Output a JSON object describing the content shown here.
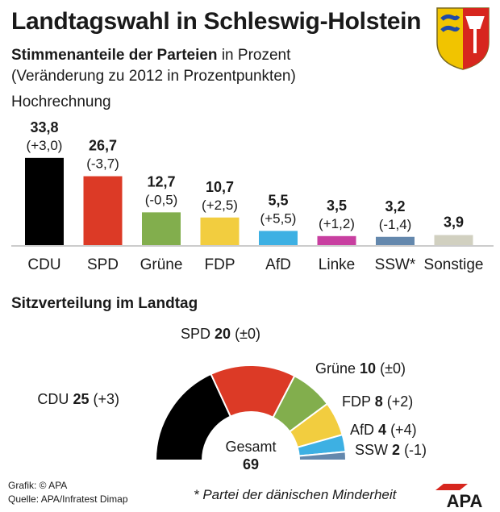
{
  "header": {
    "title": "Landtagswahl in Schleswig-Holstein",
    "subtitle_bold": "Stimmenanteile der Parteien",
    "subtitle_rest": " in Prozent",
    "subtitle2": "(Veränderung zu 2012 in Prozentpunkten)",
    "projection_label": "Hochrechnung"
  },
  "chart_data": [
    {
      "type": "bar",
      "categories": [
        "CDU",
        "SPD",
        "Grüne",
        "FDP",
        "AfD",
        "Linke",
        "SSW*",
        "Sonstige"
      ],
      "values": [
        33.8,
        26.7,
        12.7,
        10.7,
        5.5,
        3.5,
        3.2,
        3.9
      ],
      "value_labels": [
        "33,8",
        "26,7",
        "12,7",
        "10,7",
        "5,5",
        "3,5",
        "3,2",
        "3,9"
      ],
      "change_labels": [
        "(+3,0)",
        "(-3,7)",
        "(-0,5)",
        "(+2,5)",
        "(+5,5)",
        "(+1,2)",
        "(-1,4)",
        ""
      ],
      "colors": [
        "#000000",
        "#dc3a26",
        "#82ae4d",
        "#f2cd3f",
        "#3db0e3",
        "#c83fa0",
        "#6488ad",
        "#d1d0c0"
      ]
    },
    {
      "type": "pie",
      "title": "Sitzverteilung im Landtag",
      "categories": [
        "CDU",
        "SPD",
        "Grüne",
        "FDP",
        "AfD",
        "SSW"
      ],
      "values": [
        25,
        20,
        10,
        8,
        4,
        2
      ],
      "change_labels": [
        "(+3)",
        "(±0)",
        "(±0)",
        "(+2)",
        "(+4)",
        "(-1)"
      ],
      "colors": [
        "#000000",
        "#dc3a26",
        "#82ae4d",
        "#f2cd3f",
        "#3db0e3",
        "#6488ad"
      ],
      "total_label": "Gesamt",
      "total": "69"
    }
  ],
  "footer": {
    "source_graphic": "Grafik: © APA",
    "source_data": "Quelle: APA/Infratest Dimap",
    "footnote": "* Partei der dänischen Minderheit",
    "logo_text": "APA"
  }
}
